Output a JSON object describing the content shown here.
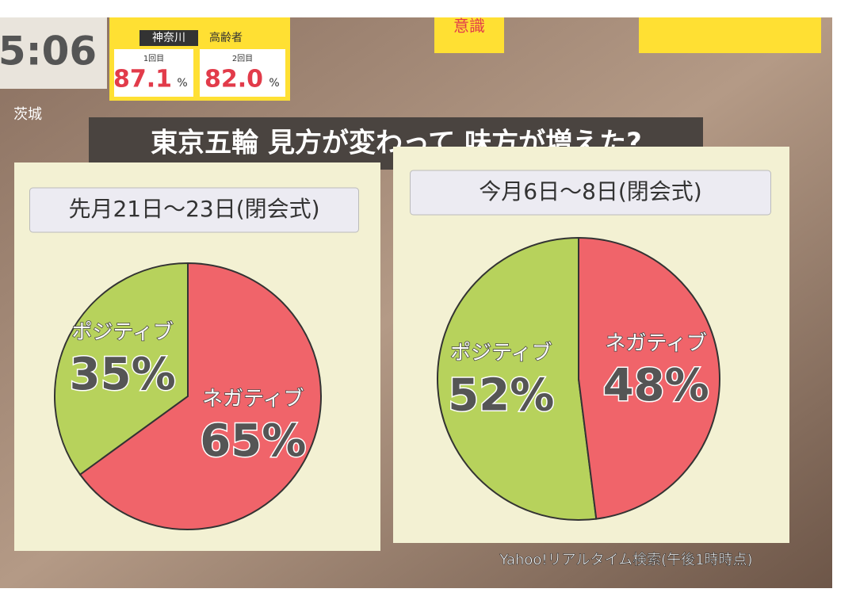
{
  "title": "東京五輪 見方が変わって 味方が増えた?",
  "source": "Yahoo!リアルタイム検索(午後1時時点)",
  "overlay": {
    "time": "5:06",
    "region": "神奈川",
    "group": "高齢者",
    "dose1": "1回目",
    "dose1_rate": "87.1",
    "dose2": "2回目",
    "dose2_rate": "82.0",
    "unit": "%",
    "weather_place": "茨城",
    "tag": "意識"
  },
  "chart_data": [
    {
      "type": "pie",
      "title": "先月21日～23日(閉会式)",
      "categories": [
        "ポジティブ",
        "ネガティブ"
      ],
      "values": [
        35,
        65
      ],
      "value_labels": [
        "35%",
        "65%"
      ],
      "colors": [
        "#b7d25c",
        "#f0646a"
      ]
    },
    {
      "type": "pie",
      "title": "今月6日～8日(閉会式)",
      "categories": [
        "ポジティブ",
        "ネガティブ"
      ],
      "values": [
        52,
        48
      ],
      "value_labels": [
        "52%",
        "48%"
      ],
      "colors": [
        "#b7d25c",
        "#f0646a"
      ]
    }
  ]
}
